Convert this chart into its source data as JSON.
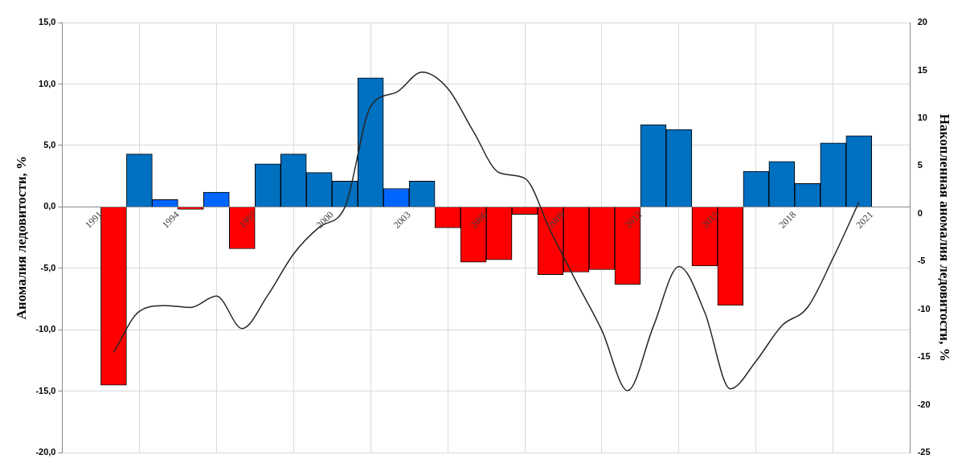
{
  "chart_data": {
    "type": "bar",
    "ylabel": "Аномалия ледовитости, %",
    "y2label": "Накопленная аномалия ледовитости, %",
    "x": [
      1991.5,
      1992.5,
      1993.5,
      1994.5,
      1995.5,
      1996.5,
      1997.5,
      1998.5,
      1999.5,
      2000.5,
      2001.5,
      2002.5,
      2003.5,
      2004.5,
      2005.5,
      2006.5,
      2007.5,
      2008.5,
      2009.5,
      2010.5,
      2011.5,
      2012.5,
      2013.5,
      2014.5,
      2015.5,
      2016.5,
      2017.5,
      2018.5,
      2019.5,
      2020.5
    ],
    "xlim": [
      1991,
      2021
    ],
    "xticks": [
      1991,
      1994,
      1997,
      2000,
      2003,
      2006,
      2009,
      2012,
      2015,
      2018,
      2021
    ],
    "ylim": [
      -20,
      15
    ],
    "yticks": [
      {
        "value": -20,
        "label": "-20,0"
      },
      {
        "value": -15,
        "label": "-15,0"
      },
      {
        "value": -10,
        "label": "-10,0"
      },
      {
        "value": -5,
        "label": "-5,0"
      },
      {
        "value": 0,
        "label": "0,0"
      },
      {
        "value": 5,
        "label": "5,0"
      },
      {
        "value": 10,
        "label": "10,0"
      },
      {
        "value": 15,
        "label": "15,0"
      }
    ],
    "y2lim": [
      -25,
      20
    ],
    "y2ticks": [
      -25,
      -20,
      -15,
      -10,
      -5,
      0,
      5,
      10,
      15,
      20
    ],
    "grid": true,
    "legend": false,
    "series": [
      {
        "values": [
          -14.5,
          4.3,
          0.6,
          -0.2,
          1.2,
          -3.4,
          3.5,
          4.3,
          2.8,
          2.1,
          10.5,
          1.5,
          2.1,
          -1.7,
          -4.5,
          -4.3,
          -0.6,
          -5.5,
          -5.3,
          -5.1,
          -6.3,
          6.7,
          6.3,
          -4.8,
          -8.0,
          2.9,
          3.7,
          1.9,
          5.2,
          5.8
        ],
        "colors": [
          "#ff0000",
          "#0070c0",
          "#0066ff",
          "#ff0000",
          "#0066ff",
          "#ff0000",
          "#0070c0",
          "#0070c0",
          "#0070c0",
          "#0070c0",
          "#0070c0",
          "#0066ff",
          "#0070c0",
          "#ff0000",
          "#ff0000",
          "#ff0000",
          "#ff0000",
          "#ff0000",
          "#ff0000",
          "#ff0000",
          "#ff0000",
          "#0070c0",
          "#0070c0",
          "#ff0000",
          "#ff0000",
          "#0070c0",
          "#0070c0",
          "#0070c0",
          "#0070c0",
          "#0070c0"
        ]
      },
      {
        "type": "line",
        "axis": "y2",
        "color": "#262626",
        "marker": "none",
        "line_style": "solid",
        "values": [
          -14.5,
          -10.2,
          -9.6,
          -9.8,
          -8.6,
          -12.0,
          -8.5,
          -4.2,
          -1.4,
          0.7,
          11.2,
          12.7,
          14.8,
          13.1,
          8.6,
          4.3,
          3.7,
          -1.8,
          -7.1,
          -12.2,
          -18.5,
          -11.8,
          -5.5,
          -10.3,
          -18.3,
          -15.4,
          -11.7,
          -9.8,
          -4.6,
          1.2
        ]
      }
    ]
  }
}
